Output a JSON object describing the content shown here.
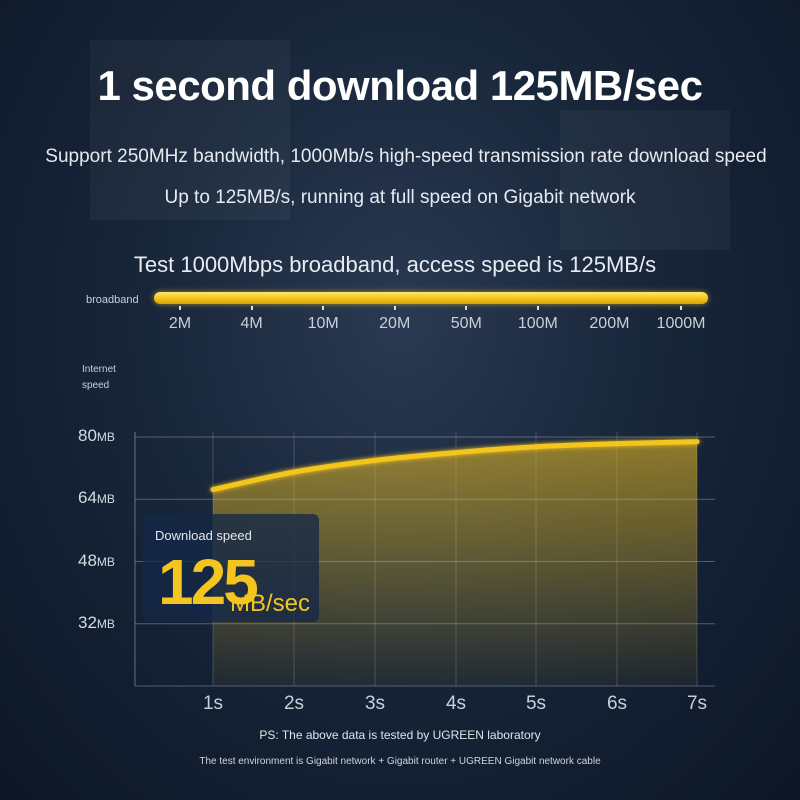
{
  "title": "1 second download 125MB/sec",
  "subtitle_line1": "Support 250MHz bandwidth, 1000Mb/s high-speed transmission rate download speed",
  "subtitle_line2": "Up to 125MB/s, running at full speed on Gigabit network",
  "broadband_section": {
    "title": "Test 1000Mbps broadband, access speed is 125MB/s",
    "label": "broadband",
    "ticks": [
      "2M",
      "4M",
      "10M",
      "20M",
      "50M",
      "100M",
      "200M",
      "1000M"
    ],
    "fill_fraction": 1.0
  },
  "download_box": {
    "label": "Download speed",
    "value": "125",
    "unit": "MB/sec"
  },
  "footnote1": "PS: The above data is tested by UGREEN laboratory",
  "footnote2": "The test environment is Gigabit network + Gigabit router + UGREEN Gigabit network cable",
  "colors": {
    "accent": "#f4c51e",
    "background": "#18263a"
  },
  "chart_data": {
    "type": "area",
    "ylabel": "Internet speed",
    "x": [
      "1s",
      "2s",
      "3s",
      "4s",
      "5s",
      "6s",
      "7s"
    ],
    "y_unit": "MB",
    "y_ticks": [
      80,
      64,
      48,
      32
    ],
    "ylim": [
      16,
      80
    ],
    "grid": true,
    "series": [
      {
        "values": [
          66.5,
          71.0,
          74.0,
          76.0,
          77.5,
          78.3,
          78.8
        ]
      }
    ]
  }
}
